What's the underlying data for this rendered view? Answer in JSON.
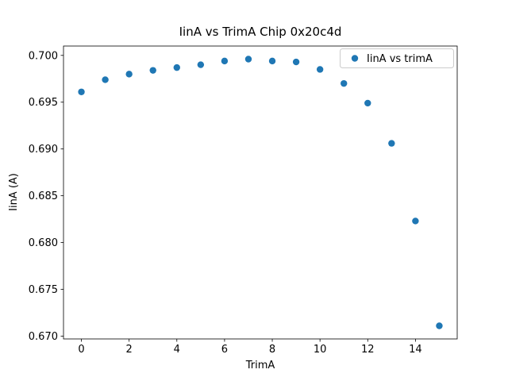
{
  "chart_data": {
    "type": "scatter",
    "title": "IinA vs TrimA Chip 0x20c4d",
    "xlabel": "TrimA",
    "ylabel": "IinA (A)",
    "legend": [
      "IinA vs trimA"
    ],
    "legend_position": "upper right",
    "marker_color": "#1f77b4",
    "grid": false,
    "x": [
      0,
      1,
      2,
      3,
      4,
      5,
      6,
      7,
      8,
      9,
      10,
      11,
      12,
      13,
      14,
      15
    ],
    "y": [
      0.6961,
      0.6974,
      0.698,
      0.6984,
      0.6987,
      0.699,
      0.6994,
      0.6996,
      0.6994,
      0.6993,
      0.6985,
      0.697,
      0.6949,
      0.6906,
      0.6823,
      0.6711
    ],
    "xlim": [
      -0.75,
      15.75
    ],
    "ylim": [
      0.6697,
      0.701
    ],
    "xticks": [
      0,
      2,
      4,
      6,
      8,
      10,
      12,
      14
    ],
    "yticks": [
      0.67,
      0.675,
      0.68,
      0.685,
      0.69,
      0.695,
      0.7
    ]
  }
}
